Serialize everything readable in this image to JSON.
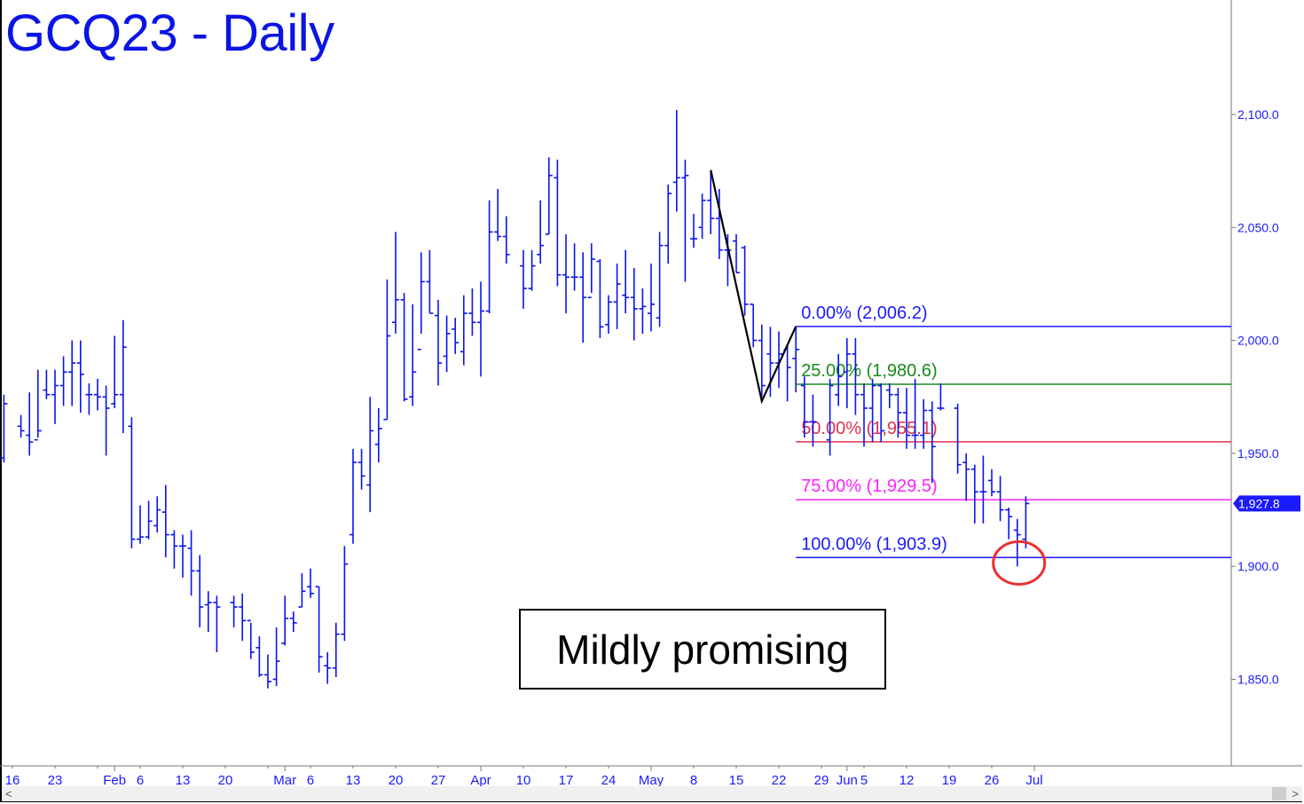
{
  "title": "GCQ23 - Daily",
  "note": "Mildly promising",
  "colors": {
    "bars": "#0a14f0",
    "fib0": "#1a1aff",
    "fib25": "#1a8a1a",
    "fib50": "#e0304a",
    "fib75": "#ff22ff",
    "fib100": "#1a1aff",
    "swing": "#000000",
    "circle": "#e83030",
    "axis_text": "#1a1aff"
  },
  "scrollbar": {
    "left_icon": "<",
    "right_icon": ">"
  },
  "chart_data": {
    "type": "ohlc",
    "title": "GCQ23 - Daily",
    "x_unit": "weekday index (0 = Jan 13, 2023)",
    "ylim": [
      1810,
      2130
    ],
    "y_ticks": [
      {
        "value": 2100,
        "label": "2,100.0"
      },
      {
        "value": 2050,
        "label": "2,050.0"
      },
      {
        "value": 2000,
        "label": "2,000.0"
      },
      {
        "value": 1950,
        "label": "1,950.0"
      },
      {
        "value": 1900,
        "label": "1,900.0"
      },
      {
        "value": 1850,
        "label": "1,850.0"
      }
    ],
    "x_ticks": [
      {
        "x": 1,
        "label": "16"
      },
      {
        "x": 6,
        "label": "23"
      },
      {
        "x": 11,
        "label": ""
      },
      {
        "x": 13,
        "label": "Feb"
      },
      {
        "x": 16,
        "label": "6"
      },
      {
        "x": 21,
        "label": "13"
      },
      {
        "x": 26,
        "label": "20"
      },
      {
        "x": 31,
        "label": ""
      },
      {
        "x": 33,
        "label": "Mar"
      },
      {
        "x": 36,
        "label": "6"
      },
      {
        "x": 41,
        "label": "13"
      },
      {
        "x": 46,
        "label": "20"
      },
      {
        "x": 51,
        "label": "27"
      },
      {
        "x": 56,
        "label": "Apr"
      },
      {
        "x": 61,
        "label": "10"
      },
      {
        "x": 66,
        "label": "17"
      },
      {
        "x": 71,
        "label": "24"
      },
      {
        "x": 76,
        "label": "May"
      },
      {
        "x": 81,
        "label": "8"
      },
      {
        "x": 86,
        "label": "15"
      },
      {
        "x": 91,
        "label": "22"
      },
      {
        "x": 96,
        "label": "29"
      },
      {
        "x": 99,
        "label": "Jun"
      },
      {
        "x": 101,
        "label": "5"
      },
      {
        "x": 106,
        "label": "12"
      },
      {
        "x": 111,
        "label": "19"
      },
      {
        "x": 116,
        "label": "26"
      },
      {
        "x": 121,
        "label": "Jul"
      }
    ],
    "bars_format": [
      "x",
      "open",
      "high",
      "low",
      "close"
    ],
    "bars": [
      [
        0,
        1948,
        1976,
        1946,
        1972
      ],
      [
        2,
        1962,
        1967,
        1957,
        1960
      ],
      [
        3,
        1958,
        1977,
        1949,
        1955
      ],
      [
        4,
        1956,
        1987,
        1957,
        1960
      ],
      [
        5,
        1978,
        1987,
        1974,
        1976
      ],
      [
        6,
        1976,
        1987,
        1963,
        1980
      ],
      [
        7,
        1980,
        1993,
        1971,
        1986
      ],
      [
        8,
        1986,
        2000,
        1971,
        1990
      ],
      [
        9,
        1990,
        2000,
        1968,
        1985
      ],
      [
        10,
        1976,
        1981,
        1967,
        1976
      ],
      [
        11,
        1976,
        1983,
        1969,
        1975
      ],
      [
        12,
        1975,
        1980,
        1949,
        1970
      ],
      [
        13,
        1972,
        2002,
        1970,
        1976
      ],
      [
        14,
        1976,
        2009,
        1959,
        1997
      ],
      [
        15,
        1962,
        1966,
        1908,
        1912
      ],
      [
        16,
        1912,
        1927,
        1910,
        1913
      ],
      [
        17,
        1913,
        1929,
        1912,
        1920
      ],
      [
        18,
        1918,
        1931,
        1915,
        1925
      ],
      [
        19,
        1924,
        1936,
        1904,
        1914
      ],
      [
        20,
        1914,
        1916,
        1899,
        1909
      ],
      [
        21,
        1909,
        1914,
        1895,
        1909
      ],
      [
        22,
        1908,
        1916,
        1887,
        1898
      ],
      [
        23,
        1898,
        1905,
        1873,
        1882
      ],
      [
        24,
        1883,
        1889,
        1871,
        1884
      ],
      [
        25,
        1884,
        1887,
        1862,
        1882
      ],
      [
        27,
        1884,
        1887,
        1873,
        1882
      ],
      [
        28,
        1882,
        1888,
        1867,
        1876
      ],
      [
        29,
        1876,
        1875,
        1859,
        1862
      ],
      [
        30,
        1864,
        1869,
        1851,
        1852
      ],
      [
        31,
        1852,
        1861,
        1846,
        1849
      ],
      [
        32,
        1850,
        1873,
        1847,
        1858
      ],
      [
        33,
        1866,
        1887,
        1865,
        1877
      ],
      [
        34,
        1877,
        1880,
        1871,
        1875
      ],
      [
        35,
        1882,
        1897,
        1882,
        1889
      ],
      [
        36,
        1891,
        1899,
        1886,
        1888
      ],
      [
        37,
        1891,
        1891,
        1853,
        1860
      ],
      [
        38,
        1856,
        1862,
        1848,
        1855
      ],
      [
        39,
        1855,
        1875,
        1851,
        1870
      ],
      [
        40,
        1870,
        1909,
        1867,
        1901
      ],
      [
        41,
        1914,
        1952,
        1910,
        1946
      ],
      [
        42,
        1946,
        1952,
        1934,
        1940
      ],
      [
        43,
        1936,
        1975,
        1924,
        1960
      ],
      [
        44,
        1954,
        1970,
        1946,
        1961
      ],
      [
        45,
        1965,
        2027,
        1965,
        2002
      ],
      [
        46,
        2008,
        2048,
        2003,
        2018
      ],
      [
        47,
        2018,
        2021,
        1973,
        1974
      ],
      [
        48,
        1975,
        2016,
        1971,
        1986
      ],
      [
        49,
        1996,
        2039,
        2003,
        2026
      ],
      [
        50,
        2026,
        2040,
        2012,
        2012
      ],
      [
        51,
        2011,
        2018,
        1980,
        1990
      ],
      [
        52,
        1993,
        2011,
        1986,
        2003
      ],
      [
        53,
        2005,
        2010,
        1994,
        1999
      ],
      [
        54,
        1995,
        2020,
        1989,
        2012
      ],
      [
        55,
        2012,
        2023,
        2002,
        2008
      ],
      [
        56,
        2008,
        2026,
        1984,
        2013
      ],
      [
        57,
        2013,
        2062,
        2012,
        2048
      ],
      [
        58,
        2048,
        2067,
        2044,
        2046
      ],
      [
        59,
        2046,
        2055,
        2034,
        2038
      ],
      [
        61,
        2033,
        2040,
        2014,
        2023
      ],
      [
        62,
        2023,
        2040,
        2022,
        2033
      ],
      [
        63,
        2038,
        2062,
        2034,
        2042
      ],
      [
        64,
        2047,
        2081,
        2047,
        2073
      ],
      [
        65,
        2072,
        2080,
        2024,
        2029
      ],
      [
        66,
        2029,
        2047,
        2012,
        2028
      ],
      [
        67,
        2028,
        2043,
        2022,
        2028
      ],
      [
        68,
        2028,
        2039,
        1999,
        2019
      ],
      [
        69,
        2019,
        2043,
        2021,
        2036
      ],
      [
        70,
        2035,
        2036,
        2001,
        2006
      ],
      [
        71,
        2007,
        2020,
        2003,
        2017
      ],
      [
        72,
        2017,
        2034,
        2005,
        2025
      ],
      [
        73,
        2020,
        2040,
        2012,
        2019
      ],
      [
        74,
        2019,
        2032,
        2000,
        2014
      ],
      [
        75,
        2014,
        2023,
        2003,
        2015
      ],
      [
        76,
        2012,
        2034,
        2004,
        2016
      ],
      [
        77,
        2010,
        2048,
        2006,
        2042
      ],
      [
        78,
        2042,
        2069,
        2034,
        2065
      ],
      [
        79,
        2070,
        2102,
        2057,
        2072
      ],
      [
        80,
        2072,
        2080,
        2026,
        2073
      ],
      [
        81,
        2045,
        2056,
        2041,
        2045
      ],
      [
        82,
        2050,
        2065,
        2045,
        2062
      ],
      [
        83,
        2062,
        2075,
        2047,
        2054
      ],
      [
        84,
        2054,
        2067,
        2036,
        2040
      ],
      [
        85,
        2040,
        2047,
        2024,
        2040
      ],
      [
        86,
        2044,
        2047,
        2030,
        2030
      ],
      [
        87,
        2041,
        2042,
        2011,
        2016
      ],
      [
        88,
        2016,
        2016,
        1997,
        2000
      ],
      [
        89,
        2000,
        2007,
        1975,
        1980
      ],
      [
        90,
        1994,
        2006,
        1975,
        1990
      ],
      [
        91,
        1990,
        2004,
        1979,
        1994
      ],
      [
        92,
        1996,
        1998,
        1973,
        1988
      ],
      [
        93,
        1992,
        2006,
        1977,
        1996
      ],
      [
        94,
        1980,
        1984,
        1957,
        1964
      ],
      [
        95,
        1964,
        1976,
        1953,
        1964
      ],
      [
        97,
        1956,
        1983,
        1949,
        1980
      ],
      [
        98,
        1976,
        1994,
        1971,
        1984
      ],
      [
        99,
        1986,
        2001,
        1970,
        1994
      ],
      [
        100,
        1994,
        2001,
        1967,
        1976
      ],
      [
        101,
        1976,
        1981,
        1953,
        1970
      ],
      [
        102,
        1970,
        1983,
        1955,
        1980
      ],
      [
        103,
        1980,
        1981,
        1955,
        1960
      ],
      [
        104,
        1978,
        1981,
        1970,
        1976
      ],
      [
        105,
        1976,
        1979,
        1957,
        1968
      ],
      [
        106,
        1968,
        1979,
        1952,
        1958
      ],
      [
        107,
        1958,
        1983,
        1952,
        1958
      ],
      [
        108,
        1958,
        1974,
        1952,
        1969
      ],
      [
        109,
        1969,
        1973,
        1937,
        1953
      ],
      [
        110,
        1970,
        1981,
        1969,
        1970
      ],
      [
        112,
        1970,
        1972,
        1941,
        1945
      ],
      [
        113,
        1946,
        1950,
        1929,
        1943
      ],
      [
        114,
        1943,
        1945,
        1919,
        1933
      ],
      [
        115,
        1933,
        1949,
        1919,
        1933
      ],
      [
        116,
        1938,
        1943,
        1931,
        1933
      ],
      [
        117,
        1933,
        1940,
        1920,
        1925
      ],
      [
        118,
        1925,
        1926,
        1912,
        1922
      ],
      [
        119,
        1916,
        1921,
        1900,
        1914
      ],
      [
        120,
        1912,
        1931,
        1908,
        1927.8
      ]
    ],
    "last_price": {
      "value": 1927.8,
      "label": "1,927.8"
    },
    "swing_line": [
      {
        "x": 83,
        "y": 2075.4
      },
      {
        "x": 89,
        "y": 1973.1
      },
      {
        "x": 93,
        "y": 2006.2
      }
    ],
    "fib_start_x": 93,
    "fib_levels": [
      {
        "pct": "0.00%",
        "value": 2006.2,
        "label": "0.00% (2,006.2)",
        "color_key": "fib0"
      },
      {
        "pct": "25.00%",
        "value": 1980.6,
        "label": "25.00% (1,980.6)",
        "color_key": "fib25"
      },
      {
        "pct": "50.00%",
        "value": 1955.1,
        "label": "50.00% (1,955.1)",
        "color_key": "fib50"
      },
      {
        "pct": "75.00%",
        "value": 1929.5,
        "label": "75.00% (1,929.5)",
        "color_key": "fib75"
      },
      {
        "pct": "100.00%",
        "value": 1903.9,
        "label": "100.00% (1,903.9)",
        "color_key": "fib100"
      }
    ],
    "annotation_circle": {
      "x": 119.2,
      "y": 1901.5
    }
  }
}
